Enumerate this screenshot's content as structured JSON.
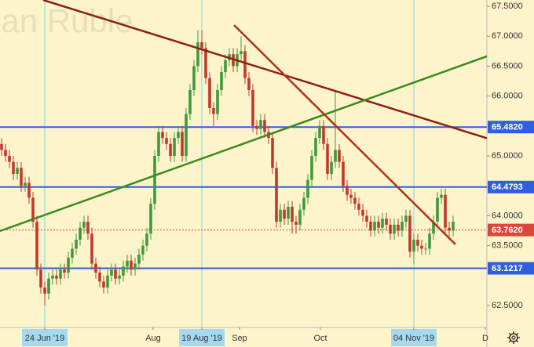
{
  "chart_data": {
    "type": "candlestick",
    "watermark": "ian Ruble",
    "background": "#fdf4cc",
    "up_color": "#3f9a3a",
    "down_color": "#c03a2b",
    "open": [
      65.2,
      65.1,
      65.0,
      64.9,
      64.7,
      64.8,
      64.5,
      64.55,
      64.3,
      63.9,
      63.1,
      62.8,
      62.7,
      62.95,
      63.0,
      62.95,
      63.1,
      63.05,
      63.3,
      63.45,
      63.6,
      63.8,
      63.9,
      63.7,
      63.2,
      63.05,
      62.9,
      62.8,
      63.0,
      63.1,
      62.95,
      63.0,
      63.15,
      63.25,
      63.1,
      63.2,
      63.35,
      63.5,
      63.7,
      64.2,
      65.0,
      65.4,
      65.3,
      65.2,
      65.0,
      65.3,
      65.4,
      65.0,
      65.7,
      66.1,
      66.5,
      66.9,
      66.8,
      66.3,
      65.8,
      65.7,
      66.1,
      66.4,
      66.6,
      66.7,
      66.5,
      66.7,
      66.75,
      66.3,
      66.1,
      65.5,
      65.45,
      65.6,
      65.4,
      65.3,
      64.8,
      63.9,
      64.1,
      63.95,
      64.15,
      63.9,
      63.85,
      64.1,
      64.3,
      64.6,
      65.0,
      65.3,
      65.5,
      65.2,
      64.7,
      64.9,
      65.1,
      64.9,
      64.5,
      64.35,
      64.3,
      64.2,
      64.1,
      64.0,
      63.9,
      63.75,
      63.9,
      63.8,
      63.95,
      63.85,
      63.7,
      63.85,
      63.75,
      63.9,
      64.0,
      63.4,
      63.6,
      63.5,
      63.45,
      63.45,
      63.7,
      63.9,
      64.3,
      64.35,
      63.8,
      63.75
    ],
    "high": [
      65.3,
      65.2,
      65.1,
      65.0,
      64.9,
      64.9,
      64.65,
      64.65,
      64.4,
      64.0,
      63.2,
      62.9,
      63.05,
      63.1,
      63.1,
      63.2,
      63.2,
      63.4,
      63.55,
      63.7,
      63.9,
      64.0,
      64.0,
      63.8,
      63.3,
      63.15,
      63.0,
      63.1,
      63.2,
      63.2,
      63.1,
      63.25,
      63.35,
      63.35,
      63.3,
      63.45,
      63.6,
      63.8,
      64.3,
      65.1,
      65.5,
      65.5,
      65.4,
      65.3,
      65.4,
      65.5,
      65.5,
      65.8,
      66.2,
      66.6,
      67.1,
      67.1,
      66.9,
      66.4,
      65.9,
      66.2,
      66.5,
      66.7,
      66.8,
      66.8,
      66.8,
      67.0,
      66.85,
      66.4,
      66.2,
      65.6,
      65.7,
      65.7,
      65.5,
      65.4,
      64.9,
      64.2,
      64.2,
      64.25,
      64.25,
      64.0,
      64.2,
      64.4,
      64.7,
      65.1,
      65.4,
      65.6,
      65.6,
      65.3,
      65.0,
      66.1,
      65.2,
      65.0,
      64.6,
      64.45,
      64.4,
      64.3,
      64.2,
      64.1,
      64.0,
      64.0,
      64.0,
      64.05,
      64.05,
      63.95,
      63.95,
      63.95,
      64.0,
      64.1,
      64.1,
      63.7,
      63.7,
      63.6,
      63.55,
      63.8,
      64.0,
      64.4,
      64.45,
      64.45,
      63.9,
      64.0
    ],
    "low": [
      65.0,
      64.9,
      64.8,
      64.6,
      64.6,
      64.4,
      64.4,
      64.2,
      63.8,
      63.0,
      62.7,
      62.5,
      62.6,
      62.85,
      62.85,
      62.85,
      62.95,
      62.95,
      63.2,
      63.35,
      63.5,
      63.7,
      63.6,
      63.1,
      62.95,
      62.8,
      62.7,
      62.7,
      62.9,
      62.85,
      62.85,
      62.9,
      63.05,
      63.0,
      63.0,
      63.1,
      63.25,
      63.4,
      63.6,
      64.1,
      64.9,
      65.2,
      65.1,
      64.9,
      64.9,
      65.2,
      64.9,
      64.9,
      65.6,
      66.0,
      66.4,
      66.7,
      66.2,
      65.7,
      65.5,
      65.6,
      66.0,
      66.3,
      66.5,
      66.4,
      66.4,
      66.6,
      66.2,
      66.0,
      65.4,
      65.35,
      65.35,
      65.3,
      65.2,
      64.7,
      63.8,
      63.8,
      63.85,
      63.85,
      63.7,
      63.7,
      63.75,
      64.0,
      64.2,
      64.5,
      64.9,
      65.2,
      65.1,
      64.6,
      64.6,
      64.8,
      64.8,
      64.4,
      64.25,
      64.2,
      64.1,
      64.0,
      63.9,
      63.8,
      63.65,
      63.65,
      63.7,
      63.7,
      63.75,
      63.6,
      63.6,
      63.65,
      63.65,
      63.8,
      63.3,
      63.2,
      63.4,
      63.35,
      63.35,
      63.35,
      63.6,
      63.8,
      64.2,
      63.7,
      63.65,
      63.65
    ],
    "close": [
      65.1,
      65.0,
      64.9,
      64.7,
      64.8,
      64.5,
      64.55,
      64.3,
      63.9,
      63.1,
      62.8,
      62.7,
      62.95,
      63.0,
      62.95,
      63.1,
      63.05,
      63.3,
      63.45,
      63.6,
      63.8,
      63.9,
      63.7,
      63.2,
      63.05,
      62.9,
      62.8,
      63.0,
      63.1,
      62.95,
      63.0,
      63.15,
      63.25,
      63.1,
      63.2,
      63.35,
      63.5,
      63.7,
      64.2,
      65.0,
      65.4,
      65.3,
      65.2,
      65.0,
      65.3,
      65.4,
      65.0,
      65.7,
      66.1,
      66.5,
      66.9,
      66.8,
      66.3,
      65.8,
      65.7,
      66.1,
      66.4,
      66.6,
      66.7,
      66.5,
      66.7,
      66.75,
      66.3,
      66.1,
      65.5,
      65.45,
      65.6,
      65.4,
      65.3,
      64.8,
      63.9,
      64.1,
      63.95,
      64.15,
      63.9,
      63.85,
      64.1,
      64.3,
      64.6,
      65.0,
      65.3,
      65.5,
      65.2,
      64.7,
      64.9,
      65.1,
      64.9,
      64.5,
      64.35,
      64.3,
      64.2,
      64.1,
      64.0,
      63.9,
      63.75,
      63.9,
      63.8,
      63.95,
      63.85,
      63.7,
      63.85,
      63.75,
      63.9,
      64.0,
      63.4,
      63.6,
      63.5,
      63.45,
      63.45,
      63.7,
      63.9,
      64.3,
      64.35,
      63.8,
      63.75,
      63.9
    ],
    "xlim": [
      -0.4,
      123.6
    ],
    "ylim": [
      62.134,
      67.605
    ],
    "xticks": [
      {
        "value": 11,
        "label": "24 Jun '19"
      },
      {
        "value": 38.6,
        "label": "Aug"
      },
      {
        "value": 51,
        "label": "19 Aug '19"
      },
      {
        "value": 60.6,
        "label": "Sep"
      },
      {
        "value": 81.2,
        "label": "Oct"
      },
      {
        "value": 105,
        "label": "04 Nov '19"
      },
      {
        "value": 123.2,
        "label": "D"
      }
    ],
    "markers": [
      11,
      51,
      105
    ],
    "yticks": [
      {
        "value": 62.5,
        "label": "62.5000"
      },
      {
        "value": 63.5,
        "label": "63.5000"
      },
      {
        "value": 64,
        "label": "64.0000"
      },
      {
        "value": 65,
        "label": "65.0000"
      },
      {
        "value": 66,
        "label": "66.0000"
      },
      {
        "value": 66.5,
        "label": "66.5000"
      },
      {
        "value": 67,
        "label": "67.0000"
      },
      {
        "value": 67.5,
        "label": "67.5000"
      }
    ],
    "levels": [
      {
        "value": 65.482,
        "label": "65.4820",
        "color": "#2f5fe0",
        "dashed": false
      },
      {
        "value": 64.4793,
        "label": "64.4793",
        "color": "#2f5fe0",
        "dashed": false
      },
      {
        "value": 63.1217,
        "label": "63.1217",
        "color": "#2f5fe0",
        "dashed": false
      },
      {
        "value": 63.762,
        "label": "63.7620",
        "color": "#d9483b",
        "dashed": true
      }
    ],
    "trendlines": [
      {
        "from": [
          10.6,
          67.605
        ],
        "to": [
          124.6,
          65.275
        ],
        "color": "#8b1f12"
      },
      {
        "from": [
          -0.4,
          63.744
        ],
        "to": [
          124.6,
          66.688
        ],
        "color": "#3c8a1e"
      },
      {
        "from": [
          59.2,
          67.186
        ],
        "to": [
          115.6,
          63.521
        ],
        "color": "#b0301a"
      }
    ]
  }
}
